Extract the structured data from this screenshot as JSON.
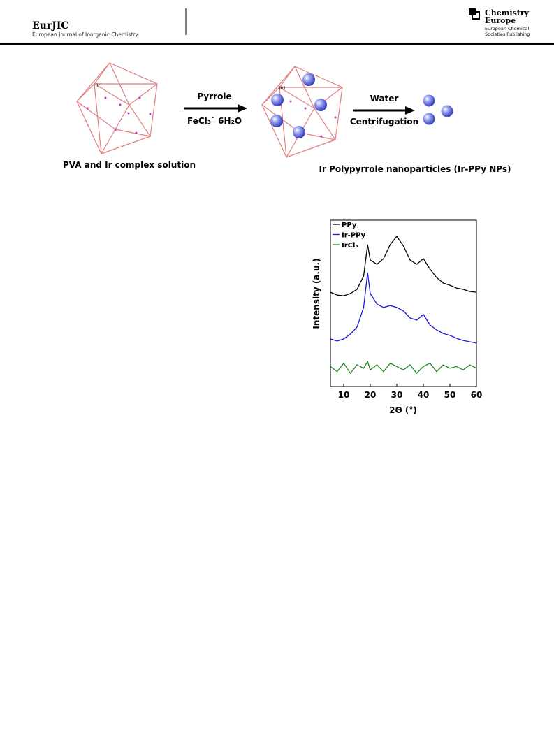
{
  "header": {
    "journal": "EurJIC",
    "journal_full": "European Journal of Inorganic Chemistry",
    "publisher_line1": "Chemistry",
    "publisher_line2": "Europe",
    "publisher_sub1": "European Chemical",
    "publisher_sub2": "Societies Publishing"
  },
  "scheme": {
    "complex_label": "(Ir)",
    "step1_reagent": "Pyrrole",
    "step1_condition": "FeCl₃˙ 6H₂O",
    "step2_reagent": "Water",
    "step2_condition": "Centrifugation",
    "start_label": "PVA and Ir complex solution",
    "end_label": "Ir Polypyrrole nanoparticles (Ir-PPy NPs)"
  },
  "chart_data": {
    "type": "line",
    "xlabel": "2Θ (°)",
    "ylabel": "Intensity (a.u.)",
    "x": [
      5,
      7.5,
      10,
      12.5,
      15,
      17.5,
      19,
      20,
      22.5,
      25,
      27.5,
      30,
      32.5,
      35,
      37.5,
      40,
      42.5,
      45,
      47.5,
      50,
      52.5,
      55,
      57.5,
      60
    ],
    "xlim": [
      5,
      60
    ],
    "xticks": [
      10,
      20,
      30,
      40,
      50,
      60
    ],
    "ylim": [
      0,
      100
    ],
    "legend": "upper left",
    "series": [
      {
        "name": "PPy",
        "color": "#000000",
        "values": [
          56.7,
          55.0,
          54.6,
          55.9,
          58.4,
          66.4,
          85.3,
          76.1,
          73.5,
          76.9,
          85.3,
          90.3,
          84.5,
          76.1,
          73.5,
          76.9,
          70.6,
          65.5,
          62.2,
          60.9,
          59.2,
          58.4,
          57.1,
          56.7
        ]
      },
      {
        "name": "Ir-PPy",
        "color": "#1a1adc",
        "values": [
          28.6,
          27.3,
          28.6,
          31.5,
          35.7,
          47.5,
          68.5,
          55.9,
          49.6,
          47.5,
          48.7,
          47.5,
          45.4,
          41.2,
          39.9,
          43.3,
          37.0,
          34.0,
          31.9,
          30.7,
          29.0,
          27.7,
          26.9,
          26.1
        ]
      },
      {
        "name": "IrCl₃",
        "color": "#1f8a1f",
        "values": [
          12,
          9,
          14,
          8,
          13,
          11,
          15,
          10,
          13,
          9,
          14,
          12,
          10,
          13,
          8,
          12,
          14,
          9,
          13,
          11,
          12,
          10,
          13,
          11
        ]
      }
    ]
  }
}
